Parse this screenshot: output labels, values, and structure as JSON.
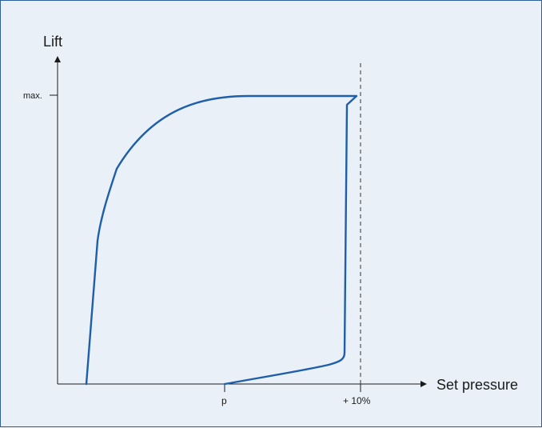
{
  "chart_data": {
    "type": "line",
    "title": "",
    "ylabel": "Lift",
    "xlabel": "Set pressure",
    "y_tick_labels": [
      "max."
    ],
    "x_tick_labels": [
      "p",
      "+ 10%"
    ],
    "reference_line": "+ 10%",
    "series": [
      {
        "values": "valve lift hysteresis curve"
      }
    ]
  },
  "colors": {
    "background": "#e9f0f8",
    "frame": "#2c5f9c",
    "curve": "#1f5ea8",
    "axis": "#1a1a1a",
    "dashed_line": "#333333"
  }
}
